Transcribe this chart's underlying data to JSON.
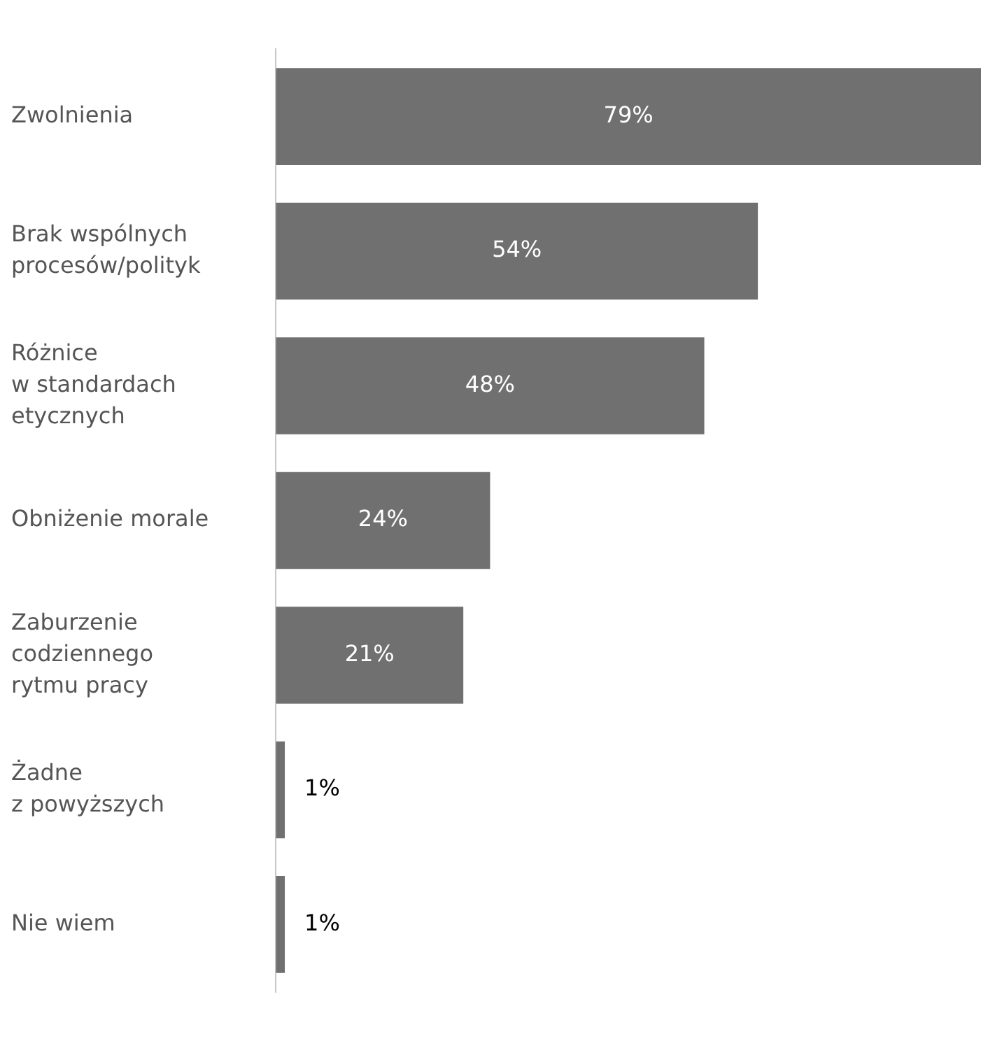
{
  "chart_data": {
    "type": "bar",
    "orientation": "horizontal",
    "categories": [
      "Zwolnienia",
      "Brak wspólnych\nprocesów/polityk",
      "Różnice\nw standardach\netycznych",
      "Obniżenie morale",
      "Zaburzenie\ncodziennego\nrytmu pracy",
      "Żadne\nz powyższych",
      "Nie wiem"
    ],
    "values": [
      79,
      54,
      48,
      24,
      21,
      1,
      1
    ],
    "value_labels": [
      "79%",
      "54%",
      "48%",
      "24%",
      "21%",
      "1%",
      "1%"
    ],
    "color": "#707070",
    "grid": false,
    "legend": false
  }
}
